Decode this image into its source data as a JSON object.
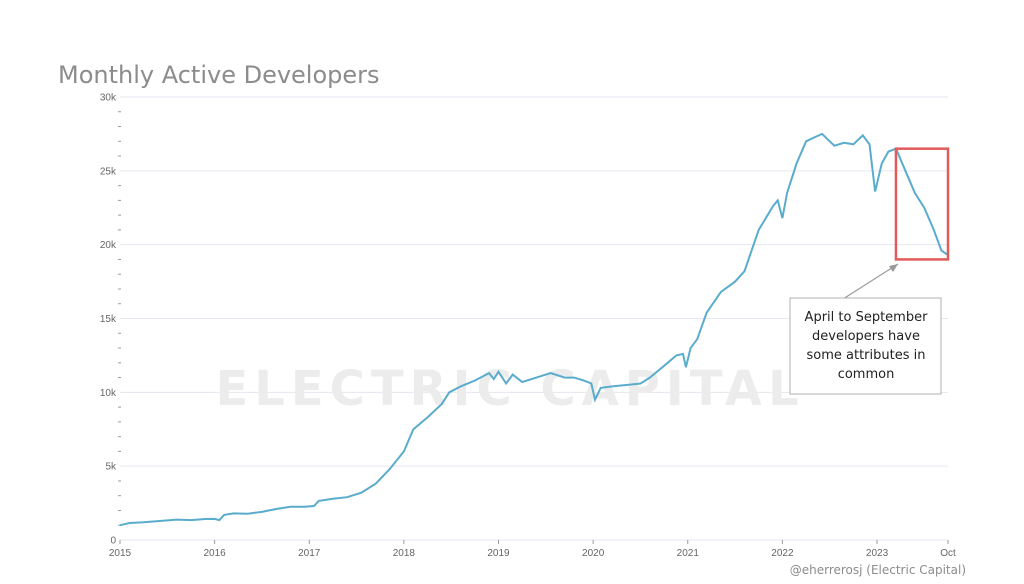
{
  "chart_data": {
    "type": "line",
    "title": "Monthly Active Developers",
    "xlabel": "",
    "ylabel": "",
    "ylim": [
      0,
      30000
    ],
    "y_ticks": [
      {
        "value": 0,
        "label": "0"
      },
      {
        "value": 5000,
        "label": "5k"
      },
      {
        "value": 10000,
        "label": "10k"
      },
      {
        "value": 15000,
        "label": "15k"
      },
      {
        "value": 20000,
        "label": "20k"
      },
      {
        "value": 25000,
        "label": "25k"
      },
      {
        "value": 30000,
        "label": "30k"
      }
    ],
    "xlim": [
      2015.0,
      2023.75
    ],
    "x_ticks": [
      {
        "value": 2015,
        "label": "2015"
      },
      {
        "value": 2016,
        "label": "2016"
      },
      {
        "value": 2017,
        "label": "2017"
      },
      {
        "value": 2018,
        "label": "2018"
      },
      {
        "value": 2019,
        "label": "2019"
      },
      {
        "value": 2020,
        "label": "2020"
      },
      {
        "value": 2021,
        "label": "2021"
      },
      {
        "value": 2022,
        "label": "2022"
      },
      {
        "value": 2023,
        "label": "2023"
      },
      {
        "value": 2023.75,
        "label": "Oct"
      }
    ],
    "series": [
      {
        "name": "Monthly Active Developers",
        "color": "#5aaccc",
        "points": [
          [
            2015.0,
            1000
          ],
          [
            2015.1,
            1150
          ],
          [
            2015.25,
            1200
          ],
          [
            2015.45,
            1300
          ],
          [
            2015.6,
            1380
          ],
          [
            2015.75,
            1350
          ],
          [
            2015.9,
            1420
          ],
          [
            2016.0,
            1430
          ],
          [
            2016.05,
            1350
          ],
          [
            2016.1,
            1700
          ],
          [
            2016.2,
            1800
          ],
          [
            2016.35,
            1780
          ],
          [
            2016.5,
            1900
          ],
          [
            2016.65,
            2100
          ],
          [
            2016.8,
            2250
          ],
          [
            2016.95,
            2250
          ],
          [
            2017.05,
            2300
          ],
          [
            2017.1,
            2650
          ],
          [
            2017.25,
            2800
          ],
          [
            2017.4,
            2900
          ],
          [
            2017.55,
            3200
          ],
          [
            2017.7,
            3800
          ],
          [
            2017.85,
            4800
          ],
          [
            2017.95,
            5600
          ],
          [
            2018.0,
            6000
          ],
          [
            2018.1,
            7500
          ],
          [
            2018.25,
            8300
          ],
          [
            2018.4,
            9200
          ],
          [
            2018.48,
            10000
          ],
          [
            2018.6,
            10400
          ],
          [
            2018.75,
            10800
          ],
          [
            2018.9,
            11300
          ],
          [
            2018.95,
            10900
          ],
          [
            2019.0,
            11400
          ],
          [
            2019.08,
            10600
          ],
          [
            2019.15,
            11200
          ],
          [
            2019.25,
            10700
          ],
          [
            2019.4,
            11000
          ],
          [
            2019.55,
            11300
          ],
          [
            2019.7,
            11000
          ],
          [
            2019.8,
            11000
          ],
          [
            2019.9,
            10800
          ],
          [
            2019.98,
            10600
          ],
          [
            2020.02,
            9500
          ],
          [
            2020.08,
            10300
          ],
          [
            2020.2,
            10400
          ],
          [
            2020.35,
            10500
          ],
          [
            2020.5,
            10600
          ],
          [
            2020.6,
            11000
          ],
          [
            2020.75,
            11800
          ],
          [
            2020.88,
            12500
          ],
          [
            2020.95,
            12600
          ],
          [
            2020.98,
            11700
          ],
          [
            2021.03,
            13000
          ],
          [
            2021.1,
            13600
          ],
          [
            2021.2,
            15400
          ],
          [
            2021.35,
            16800
          ],
          [
            2021.5,
            17500
          ],
          [
            2021.6,
            18200
          ],
          [
            2021.75,
            21000
          ],
          [
            2021.9,
            22600
          ],
          [
            2021.95,
            23000
          ],
          [
            2022.0,
            21800
          ],
          [
            2022.05,
            23500
          ],
          [
            2022.15,
            25500
          ],
          [
            2022.25,
            27000
          ],
          [
            2022.35,
            27300
          ],
          [
            2022.42,
            27500
          ],
          [
            2022.5,
            27000
          ],
          [
            2022.55,
            26700
          ],
          [
            2022.65,
            26900
          ],
          [
            2022.75,
            26800
          ],
          [
            2022.85,
            27400
          ],
          [
            2022.92,
            26800
          ],
          [
            2022.98,
            23600
          ],
          [
            2023.05,
            25500
          ],
          [
            2023.12,
            26300
          ],
          [
            2023.2,
            26500
          ],
          [
            2023.3,
            25000
          ],
          [
            2023.4,
            23500
          ],
          [
            2023.5,
            22500
          ],
          [
            2023.6,
            21000
          ],
          [
            2023.68,
            19600
          ],
          [
            2023.75,
            19300
          ]
        ]
      }
    ],
    "highlight_box": {
      "x_start": 2023.2,
      "x_end": 2023.75,
      "y_low": 19000,
      "y_high": 26500,
      "color": "#e35a5a"
    },
    "watermark": "ELECTRIC CAPITAL",
    "annotation": {
      "lines": [
        "April to September",
        "developers have",
        "some attributes in",
        "common"
      ]
    },
    "credit": "@eherrerosj (Electric Capital)"
  }
}
